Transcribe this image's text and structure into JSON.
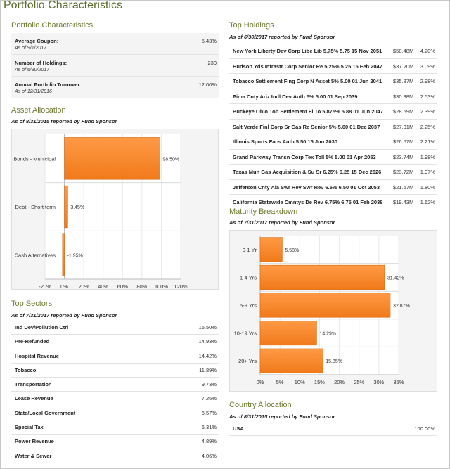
{
  "page_title": "Portfolio Characteristics",
  "colors": {
    "heading": "#6b7a2e",
    "bar": "#f07a1a",
    "bar_light": "#ff9a45",
    "row_bg": "#f4f4f4"
  },
  "portfolio": {
    "heading": "Portfolio Characteristics",
    "items": [
      {
        "label": "Average Coupon:",
        "value": "5.43%",
        "asof": "As of 9/1/2017"
      },
      {
        "label": "Number of Holdings:",
        "value": "230",
        "asof": "As of 6/30/2017"
      },
      {
        "label": "Annual Portfolio Turnover:",
        "value": "12.00%",
        "asof": "As of 12/31/2016"
      }
    ]
  },
  "asset_allocation": {
    "heading": "Asset Allocation",
    "asof": "As of 8/31/2015 reported by Fund Sponsor",
    "chart_data": {
      "type": "bar",
      "orientation": "horizontal",
      "categories": [
        "Bonds - Municipal",
        "Debt - Short term",
        "Cash Alternatives"
      ],
      "values": [
        98.5,
        3.45,
        -1.95
      ],
      "data_labels": [
        "98.50%",
        "3.45%",
        "-1.95%"
      ],
      "xlim": [
        -20,
        120
      ],
      "ticks": [
        -20,
        0,
        20,
        40,
        60,
        80,
        100,
        120
      ],
      "tick_labels": [
        "-20%",
        "0%",
        "20%",
        "40%",
        "60%",
        "80%",
        "100%",
        "120%"
      ]
    }
  },
  "top_sectors": {
    "heading": "Top Sectors",
    "asof": "As of 7/31/2017 reported by Fund Sponsor",
    "rows": [
      {
        "name": "Ind Dev/Pollution Ctrl",
        "pct": "15.50%"
      },
      {
        "name": "Pre-Refunded",
        "pct": "14.93%"
      },
      {
        "name": "Hospital Revenue",
        "pct": "14.42%"
      },
      {
        "name": "Tobacco",
        "pct": "11.89%"
      },
      {
        "name": "Transportation",
        "pct": "9.73%"
      },
      {
        "name": "Lease Revenue",
        "pct": "7.26%"
      },
      {
        "name": "State/Local Government",
        "pct": "6.57%"
      },
      {
        "name": "Special Tax",
        "pct": "6.31%"
      },
      {
        "name": "Power Revenue",
        "pct": "4.89%"
      },
      {
        "name": "Water & Sewer",
        "pct": "4.06%"
      }
    ]
  },
  "top_holdings": {
    "heading": "Top Holdings",
    "asof": "As of 6/30/2017 reported by Fund Sponsor",
    "rows": [
      {
        "name": "New York Liberty Dev Corp Libe Lib 5.75% 5.75 15 Nov 2051",
        "value": "$50.48M",
        "pct": "4.20%"
      },
      {
        "name": "Hudson Yds Infrastr Corp Senior Re 5.25% 5.25 15 Feb 2047",
        "value": "$37.20M",
        "pct": "3.09%"
      },
      {
        "name": "Tobacco Settlement Fing Corp N Asset 5% 5.00 01 Jun 2041",
        "value": "$35.87M",
        "pct": "2.98%"
      },
      {
        "name": "Pima Cnty Ariz Indl Dev Auth 5% 5.00 01 Sep 2039",
        "value": "$30.38M",
        "pct": "2.53%"
      },
      {
        "name": "Buckeye Ohio Tob Settlement Fi To 5.875% 5.88 01 Jun 2047",
        "value": "$28.69M",
        "pct": "2.39%"
      },
      {
        "name": "Salt Verde Finl Corp Sr Gas Re Senior 5% 5.00 01 Dec 2037",
        "value": "$27.01M",
        "pct": "2.25%"
      },
      {
        "name": "Illinois Sports Facs Auth 5.50 15 Jun 2030",
        "value": "$26.57M",
        "pct": "2.21%"
      },
      {
        "name": "Grand Parkway Transn Corp Tex Toll 5% 5.00 01 Apr 2053",
        "value": "$23.74M",
        "pct": "1.98%"
      },
      {
        "name": "Texas Mun Gas Acquisition & Su Sr 6.25% 6.25 15 Dec 2026",
        "value": "$23.72M",
        "pct": "1.97%"
      },
      {
        "name": "Jefferson Cnty Ala Swr Rev Swr Rev 6.5% 6.50 01 Oct 2053",
        "value": "$21.67M",
        "pct": "1.80%"
      },
      {
        "name": "California Statewide Cmntys De Rev 6.75% 6.75 01 Feb 2038",
        "value": "$19.43M",
        "pct": "1.62%"
      }
    ]
  },
  "maturity_breakdown": {
    "heading": "Maturity Breakdown",
    "asof": "As of 7/31/2017 reported by Fund Sponsor",
    "chart_data": {
      "type": "bar",
      "orientation": "horizontal",
      "categories": [
        "0-1 Yr",
        "1-4 Yrs",
        "5-9 Yrs",
        "10-19 Yrs",
        "20+ Yrs"
      ],
      "values": [
        5.58,
        31.42,
        32.87,
        14.29,
        15.85
      ],
      "data_labels": [
        "5.58%",
        "31.42%",
        "32.87%",
        "14.29%",
        "15.85%"
      ],
      "xlim": [
        0,
        35
      ],
      "ticks": [
        0,
        5,
        10,
        15,
        20,
        25,
        30,
        35
      ],
      "tick_labels": [
        "0%",
        "5%",
        "10%",
        "15%",
        "20%",
        "25%",
        "30%",
        "35%"
      ]
    }
  },
  "country_allocation": {
    "heading": "Country Allocation",
    "asof": "As of 8/31/2015 reported by Fund Sponsor",
    "rows": [
      {
        "name": "USA",
        "pct": "100.00%"
      }
    ]
  }
}
